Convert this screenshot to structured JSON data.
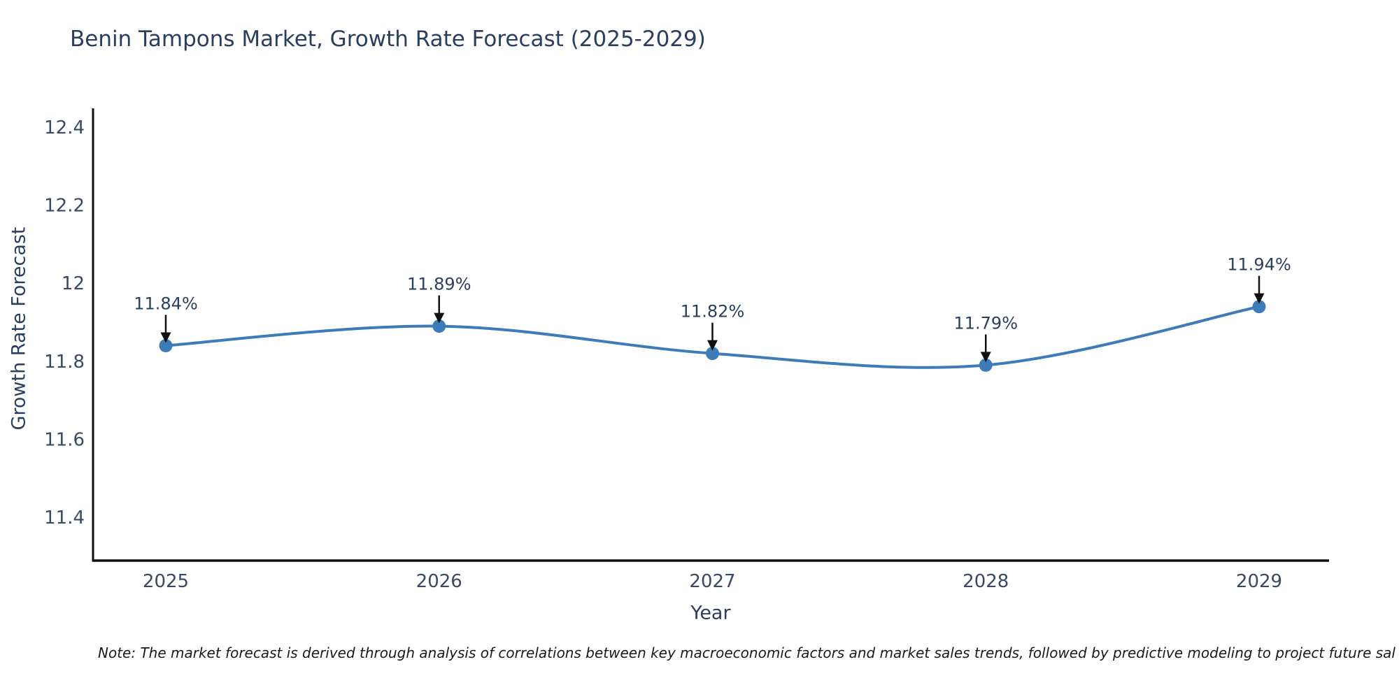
{
  "chart_data": {
    "type": "line",
    "title": "Benin Tampons Market, Growth Rate Forecast (2025-2029)",
    "xlabel": "Year",
    "ylabel": "Growth Rate Forecast",
    "x": [
      2025,
      2026,
      2027,
      2028,
      2029
    ],
    "series": [
      {
        "name": "Growth Rate Forecast",
        "values": [
          11.84,
          11.89,
          11.82,
          11.79,
          11.94
        ]
      }
    ],
    "point_labels": [
      "11.84%",
      "11.89%",
      "11.82%",
      "11.79%",
      "11.94%"
    ],
    "yticks": {
      "values": [
        11.4,
        11.6,
        11.8,
        12.0,
        12.2,
        12.4
      ],
      "labels": [
        "11.4",
        "11.6",
        "11.8",
        "12",
        "12.2",
        "12.4"
      ]
    },
    "ylim": [
      11.29,
      12.46
    ],
    "line_shape": "spline",
    "grid": false,
    "legend": false,
    "colors": {
      "line": "#3d7cb8",
      "marker": "#3d7cb8",
      "title_text": "#2a3f5f",
      "tick_text": "#3b4a63",
      "axis": "#111111",
      "arrow": "#111111",
      "background": "#ffffff"
    },
    "note": "Note: The market forecast is derived through analysis of correlations between key macroeconomic factors and market sales trends, followed by predictive modeling to project future sal"
  }
}
